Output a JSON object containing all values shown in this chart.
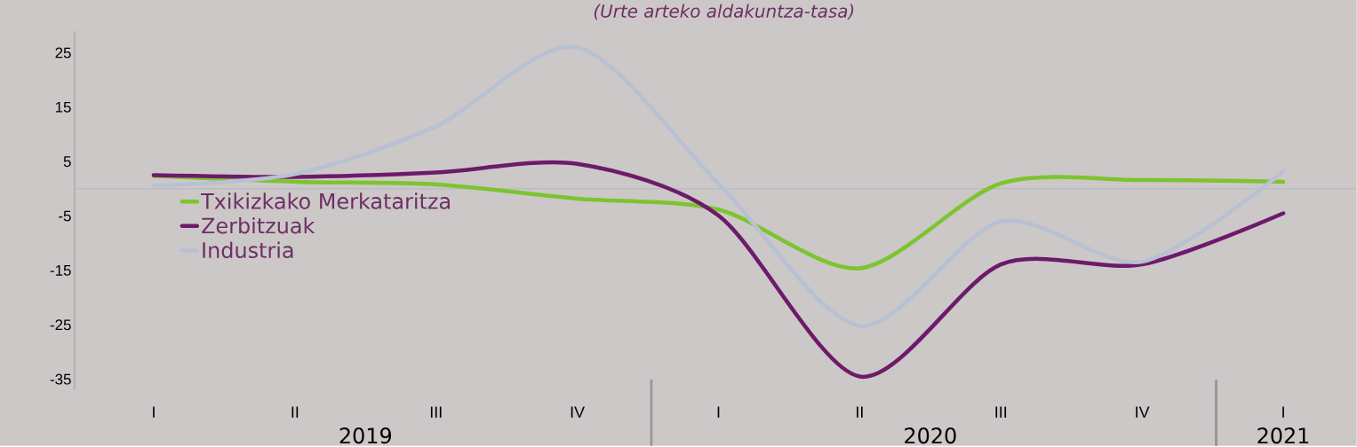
{
  "chart_data": {
    "type": "line",
    "subtitle": "(Urte arteko aldakuntza-tasa)",
    "categories": [
      "I",
      "II",
      "III",
      "IV",
      "I",
      "II",
      "III",
      "IV",
      "I"
    ],
    "series": [
      {
        "name": "Txikizkako Merkataritza",
        "color": "#7dc42e",
        "values": [
          2.4,
          1.3,
          0.8,
          -1.8,
          -3.8,
          -14.6,
          1.0,
          1.6,
          1.3
        ]
      },
      {
        "name": "Zerbitzuak",
        "color": "#6e1a6a",
        "values": [
          2.5,
          2.2,
          3.0,
          4.6,
          -4.9,
          -34.5,
          -13.9,
          -13.9,
          -4.5
        ]
      },
      {
        "name": "Industria",
        "color": "#b8c0d4",
        "values": [
          0.6,
          2.7,
          11.5,
          26,
          1.0,
          -25.2,
          -6.0,
          -13.4,
          3.2
        ]
      }
    ],
    "ylim": [
      -37,
      29
    ],
    "yticks": [
      -35,
      -25,
      -15,
      -5,
      5,
      15,
      25
    ],
    "ref_lines": [
      {
        "axis": "y",
        "value": 0,
        "color": "#a8b0c4"
      }
    ],
    "annotations": [
      "2019",
      "2020",
      "2021"
    ],
    "legend": "left",
    "grid": false,
    "marker": "none",
    "line_style": "solid"
  }
}
